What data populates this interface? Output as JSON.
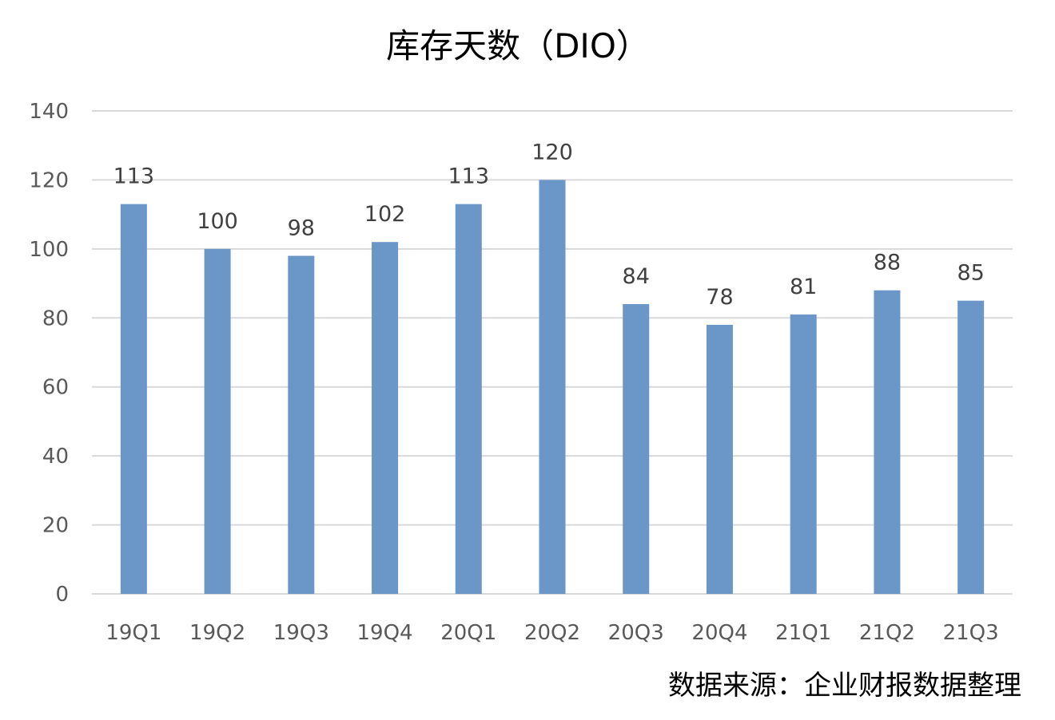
{
  "chart_data": {
    "type": "bar",
    "title": "库存天数（DIO）",
    "xlabel": "",
    "ylabel": "",
    "categories": [
      "19Q1",
      "19Q2",
      "19Q3",
      "19Q4",
      "20Q1",
      "20Q2",
      "20Q3",
      "20Q4",
      "21Q1",
      "21Q2",
      "21Q3"
    ],
    "series": [
      {
        "values": [
          113,
          100,
          98,
          102,
          113,
          120,
          84,
          78,
          81,
          88,
          85
        ]
      }
    ],
    "data_labels": [
      "113",
      "100",
      "98",
      "102",
      "113",
      "120",
      "84",
      "78",
      "81",
      "88",
      "85"
    ],
    "ylim": [
      0,
      140
    ],
    "yticks": [
      "0",
      "20",
      "40",
      "60",
      "80",
      "100",
      "120",
      "140"
    ],
    "grid": true,
    "legend": "none",
    "colors": {
      "bar": "#6a96c8",
      "grid": "#d9d9d9",
      "axis": "#d9d9d9"
    },
    "source_note": "数据来源：企业财报数据整理"
  }
}
